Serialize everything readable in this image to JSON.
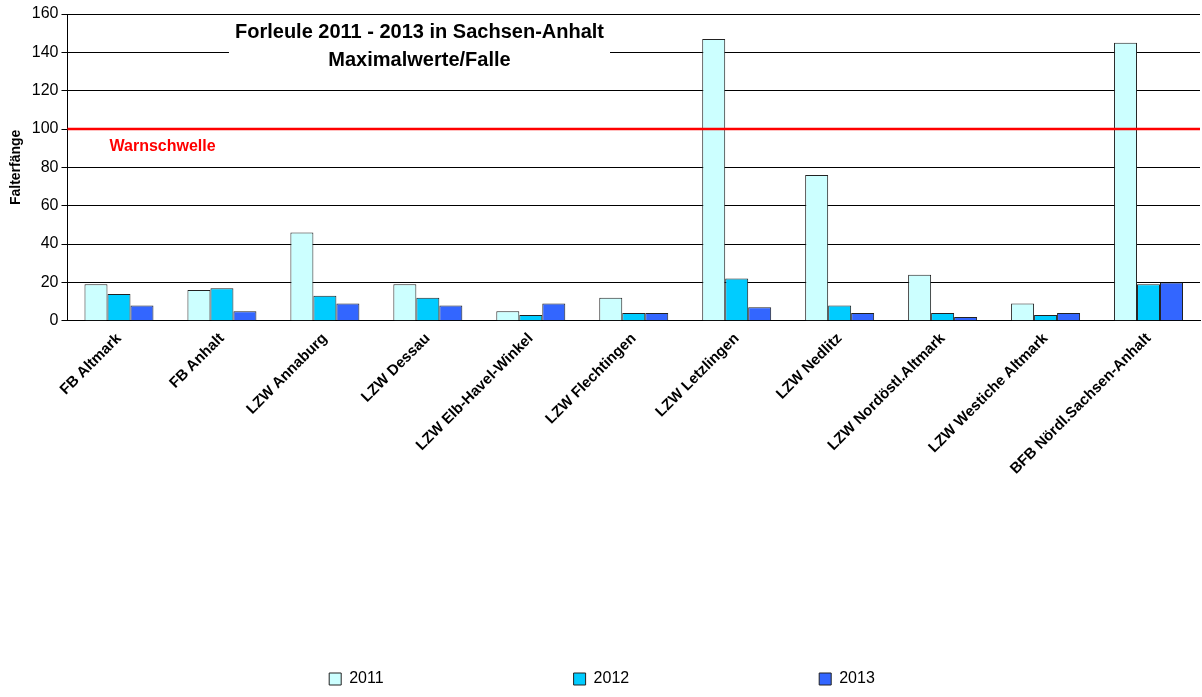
{
  "chart_data": {
    "type": "bar",
    "title": "Forleule 2011 - 2013 in Sachsen-Anhalt\nMaximalwerte/Falle",
    "ylabel": "Falterfänge",
    "categories": [
      "FB Altmark",
      "FB Anhalt",
      "LZW Annaburg",
      "LZW Dessau",
      "LZW Elb-Havel-Winkel",
      "LZW Flechtingen",
      "LZW Letzlingen",
      "LZW Nedlitz",
      "LZW Nordöstl.Altmark",
      "LZW Westiche Altmark",
      "BFB Nördl.Sachsen-Anhalt"
    ],
    "series": [
      {
        "name": "2011",
        "color": "#ccffff",
        "values": [
          19,
          16,
          46,
          19,
          5,
          12,
          147,
          76,
          24,
          9,
          145
        ]
      },
      {
        "name": "2012",
        "color": "#00ccff",
        "values": [
          14,
          17,
          13,
          12,
          3,
          4,
          22,
          8,
          4,
          3,
          19
        ]
      },
      {
        "name": "2013",
        "color": "#3366ff",
        "values": [
          8,
          5,
          9,
          8,
          9,
          4,
          7,
          4,
          2,
          4,
          20
        ]
      }
    ],
    "ylim": [
      0,
      160
    ],
    "yticks": [
      0,
      20,
      40,
      60,
      80,
      100,
      120,
      140,
      160
    ],
    "grid": "y",
    "legend": "bottom",
    "ref_lines": [
      {
        "axis": "y",
        "value": 100,
        "label": "Warnschwelle",
        "color": "#ff0000"
      }
    ]
  }
}
